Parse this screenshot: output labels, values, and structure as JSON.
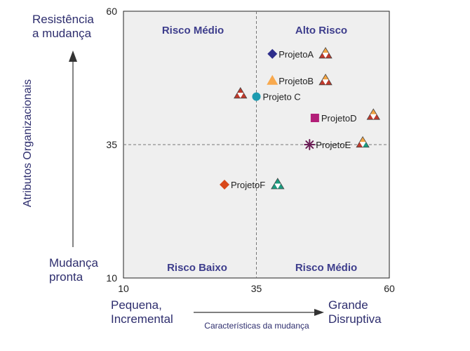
{
  "chart_data": {
    "type": "scatter",
    "xlim": [
      10,
      60
    ],
    "ylim": [
      10,
      60
    ],
    "x_ticks": [
      10,
      35,
      60
    ],
    "y_ticks": [
      10,
      35,
      60
    ],
    "x_divider": 35,
    "y_divider": 35,
    "y_axis_title": "Atributos Organizacionais",
    "x_axis_title": "Características da mudança",
    "y_top_label": [
      "Resistência",
      "a mudança"
    ],
    "y_bottom_label": [
      "Mudança",
      "pronta"
    ],
    "x_left_label": [
      "Pequena,",
      "Incremental"
    ],
    "x_right_label": [
      "Grande",
      "Disruptiva"
    ],
    "quadrants": {
      "top_left": "Risco Médio",
      "top_right": "Alto Risco",
      "bottom_left": "Risco Baixo",
      "bottom_right": "Risco Médio"
    },
    "series": [
      {
        "name": "ProjetoA",
        "x": 38,
        "y": 52,
        "marker": "diamond",
        "color": "#2e2e8c",
        "triangle": {
          "x": 48,
          "y": 52,
          "top": "#f2a444",
          "bottom_left": "#c0392b",
          "bottom_right": "#c0392b"
        }
      },
      {
        "name": "ProjetoB",
        "x": 38,
        "y": 47,
        "marker": "triangle",
        "color": "#f8a94e",
        "triangle": {
          "x": 48,
          "y": 47,
          "top": "#f2a444",
          "bottom_left": "#c0392b",
          "bottom_right": "#c0392b"
        }
      },
      {
        "name": "Projeto C",
        "x": 35,
        "y": 44,
        "marker": "circle",
        "color": "#1c9bb0",
        "triangle": {
          "x": 32,
          "y": 44.5,
          "top": "#c0392b",
          "bottom_left": "#c0392b",
          "bottom_right": "#c0392b"
        }
      },
      {
        "name": "ProjetoD",
        "x": 46,
        "y": 40,
        "marker": "square",
        "color": "#b21e78",
        "triangle": {
          "x": 57,
          "y": 40.5,
          "top": "#f2a444",
          "bottom_left": "#c0392b",
          "bottom_right": "#c0392b"
        }
      },
      {
        "name": "ProjetoE",
        "x": 45,
        "y": 35,
        "marker": "asterisk",
        "color": "#6b1e56",
        "triangle": {
          "x": 55,
          "y": 35.3,
          "top": "#f2a444",
          "bottom_left": "#c0392b",
          "bottom_right": "#1b9c80"
        }
      },
      {
        "name": "ProjetoF",
        "x": 29,
        "y": 27.5,
        "marker": "diamond",
        "color": "#d8481a",
        "triangle": {
          "x": 39,
          "y": 27.5,
          "top": "#1b9c80",
          "bottom_left": "#1b9c80",
          "bottom_right": "#1b9c80"
        }
      }
    ]
  },
  "colors": {
    "plot_background": "#efefef",
    "plot_border": "#222222",
    "quadrant_text": "#3d3d8c",
    "axis_label_text": "#2e2e6e",
    "divider": "#777777"
  }
}
